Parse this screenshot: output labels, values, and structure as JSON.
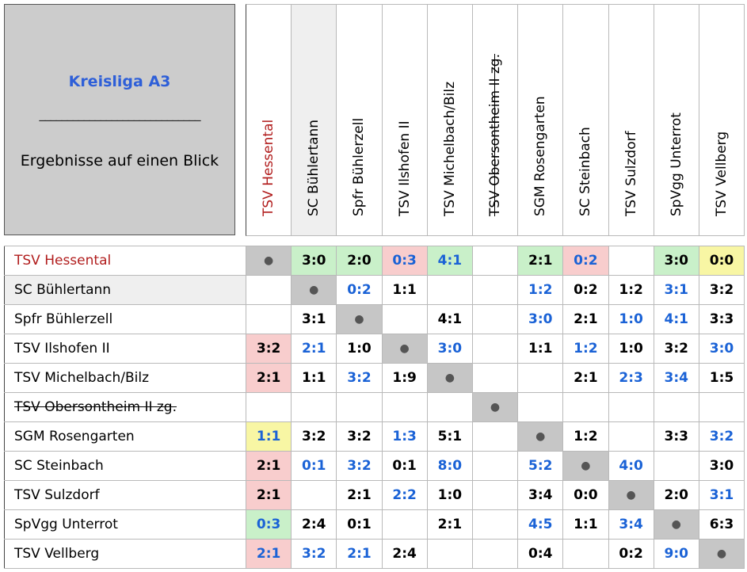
{
  "title": "Kreisliga A3",
  "divider": "_____________________________",
  "subtitle": "Ergebnisse auf einen Blick",
  "diag_symbol": "●",
  "teams": [
    {
      "name": "TSV Hessental",
      "style": "red"
    },
    {
      "name": "SC Bühlertann",
      "style": "grey"
    },
    {
      "name": "Spfr Bühlerzell",
      "style": ""
    },
    {
      "name": "TSV Ilshofen II",
      "style": ""
    },
    {
      "name": "TSV Michelbach/Bilz",
      "style": ""
    },
    {
      "name": "TSV Obersontheim II zg.",
      "style": "struck"
    },
    {
      "name": "SGM Rosengarten",
      "style": ""
    },
    {
      "name": "SC Steinbach",
      "style": ""
    },
    {
      "name": "TSV Sulzdorf",
      "style": ""
    },
    {
      "name": "SpVgg Unterrot",
      "style": ""
    },
    {
      "name": "TSV Vellberg",
      "style": ""
    }
  ],
  "results": [
    [
      null,
      {
        "s": "3:0",
        "c": "home",
        "bg": "win"
      },
      {
        "s": "2:0",
        "c": "home",
        "bg": "win"
      },
      {
        "s": "0:3",
        "c": "away",
        "bg": "loss"
      },
      {
        "s": "4:1",
        "c": "away",
        "bg": "win"
      },
      null,
      {
        "s": "2:1",
        "c": "home",
        "bg": "win"
      },
      {
        "s": "0:2",
        "c": "away",
        "bg": "loss"
      },
      null,
      {
        "s": "3:0",
        "c": "home",
        "bg": "win"
      },
      {
        "s": "0:0",
        "c": "home",
        "bg": "draw"
      }
    ],
    [
      null,
      null,
      {
        "s": "0:2",
        "c": "away"
      },
      {
        "s": "1:1",
        "c": "home"
      },
      null,
      null,
      {
        "s": "1:2",
        "c": "away"
      },
      {
        "s": "0:2",
        "c": "home"
      },
      {
        "s": "1:2",
        "c": "home"
      },
      {
        "s": "3:1",
        "c": "away"
      },
      {
        "s": "3:2",
        "c": "home"
      }
    ],
    [
      null,
      {
        "s": "3:1",
        "c": "home"
      },
      null,
      null,
      {
        "s": "4:1",
        "c": "home"
      },
      null,
      {
        "s": "3:0",
        "c": "away"
      },
      {
        "s": "2:1",
        "c": "home"
      },
      {
        "s": "1:0",
        "c": "away"
      },
      {
        "s": "4:1",
        "c": "away"
      },
      {
        "s": "3:3",
        "c": "home"
      }
    ],
    [
      {
        "s": "3:2",
        "c": "home",
        "bg": "loss"
      },
      {
        "s": "2:1",
        "c": "away"
      },
      {
        "s": "1:0",
        "c": "home"
      },
      null,
      {
        "s": "3:0",
        "c": "away"
      },
      null,
      {
        "s": "1:1",
        "c": "home"
      },
      {
        "s": "1:2",
        "c": "away"
      },
      {
        "s": "1:0",
        "c": "home"
      },
      {
        "s": "3:2",
        "c": "home"
      },
      {
        "s": "3:0",
        "c": "away"
      }
    ],
    [
      {
        "s": "2:1",
        "c": "home",
        "bg": "loss"
      },
      {
        "s": "1:1",
        "c": "home"
      },
      {
        "s": "3:2",
        "c": "away"
      },
      {
        "s": "1:9",
        "c": "home"
      },
      null,
      null,
      null,
      {
        "s": "2:1",
        "c": "home"
      },
      {
        "s": "2:3",
        "c": "away"
      },
      {
        "s": "3:4",
        "c": "away"
      },
      {
        "s": "1:5",
        "c": "home"
      }
    ],
    [
      null,
      null,
      null,
      null,
      null,
      null,
      null,
      null,
      null,
      null,
      null
    ],
    [
      {
        "s": "1:1",
        "c": "away",
        "bg": "draw"
      },
      {
        "s": "3:2",
        "c": "home"
      },
      {
        "s": "3:2",
        "c": "home"
      },
      {
        "s": "1:3",
        "c": "away"
      },
      {
        "s": "5:1",
        "c": "home"
      },
      null,
      null,
      {
        "s": "1:2",
        "c": "home"
      },
      null,
      {
        "s": "3:3",
        "c": "home"
      },
      {
        "s": "3:2",
        "c": "away"
      }
    ],
    [
      {
        "s": "2:1",
        "c": "home",
        "bg": "loss"
      },
      {
        "s": "0:1",
        "c": "away"
      },
      {
        "s": "3:2",
        "c": "away"
      },
      {
        "s": "0:1",
        "c": "home"
      },
      {
        "s": "8:0",
        "c": "away"
      },
      null,
      {
        "s": "5:2",
        "c": "away"
      },
      null,
      {
        "s": "4:0",
        "c": "away"
      },
      null,
      {
        "s": "3:0",
        "c": "home"
      }
    ],
    [
      {
        "s": "2:1",
        "c": "home",
        "bg": "loss"
      },
      null,
      {
        "s": "2:1",
        "c": "home"
      },
      {
        "s": "2:2",
        "c": "away"
      },
      {
        "s": "1:0",
        "c": "home"
      },
      null,
      {
        "s": "3:4",
        "c": "home"
      },
      {
        "s": "0:0",
        "c": "home"
      },
      null,
      {
        "s": "2:0",
        "c": "home"
      },
      {
        "s": "3:1",
        "c": "away"
      }
    ],
    [
      {
        "s": "0:3",
        "c": "away",
        "bg": "win"
      },
      {
        "s": "2:4",
        "c": "home"
      },
      {
        "s": "0:1",
        "c": "home"
      },
      null,
      {
        "s": "2:1",
        "c": "home"
      },
      null,
      {
        "s": "4:5",
        "c": "away"
      },
      {
        "s": "1:1",
        "c": "home"
      },
      {
        "s": "3:4",
        "c": "away"
      },
      null,
      {
        "s": "6:3",
        "c": "home"
      }
    ],
    [
      {
        "s": "2:1",
        "c": "away",
        "bg": "loss"
      },
      {
        "s": "3:2",
        "c": "away"
      },
      {
        "s": "2:1",
        "c": "away"
      },
      {
        "s": "2:4",
        "c": "home"
      },
      null,
      null,
      {
        "s": "0:4",
        "c": "home"
      },
      null,
      {
        "s": "0:2",
        "c": "home"
      },
      {
        "s": "9:0",
        "c": "away"
      },
      null
    ]
  ]
}
